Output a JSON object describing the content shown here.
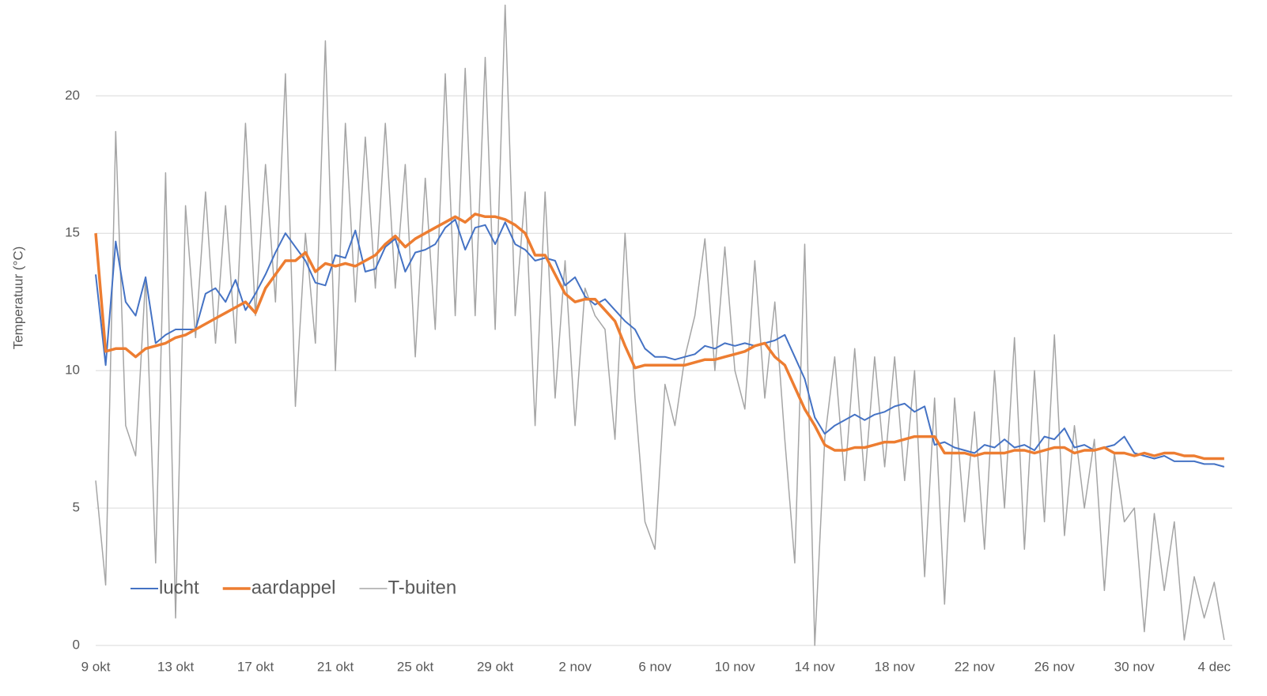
{
  "chart_data": {
    "type": "line",
    "y_label": "Temperatuur (°C)",
    "x": [
      0,
      0.5,
      1,
      1.5,
      2,
      2.5,
      3,
      3.5,
      4,
      4.5,
      5,
      5.5,
      6,
      6.5,
      7,
      7.5,
      8,
      8.5,
      9,
      9.5,
      10,
      10.5,
      11,
      11.5,
      12,
      12.5,
      13,
      13.5,
      14,
      14.5,
      15,
      15.5,
      16,
      16.5,
      17,
      17.5,
      18,
      18.5,
      19,
      19.5,
      20,
      20.5,
      21,
      21.5,
      22,
      22.5,
      23,
      23.5,
      24,
      24.5,
      25,
      25.5,
      26,
      26.5,
      27,
      27.5,
      28,
      28.5,
      29,
      29.5,
      30,
      30.5,
      31,
      31.5,
      32,
      32.5,
      33,
      33.5,
      34,
      34.5,
      35,
      35.5,
      36,
      36.5,
      37,
      37.5,
      38,
      38.5,
      39,
      39.5,
      40,
      40.5,
      41,
      41.5,
      42,
      42.5,
      43,
      43.5,
      44,
      44.5,
      45,
      45.5,
      46,
      46.5,
      47,
      47.5,
      48,
      48.5,
      49,
      49.5,
      50,
      50.5,
      51,
      51.5,
      52,
      52.5,
      53,
      53.5,
      54,
      54.5,
      55,
      55.5,
      56,
      56.5
    ],
    "xlim": [
      0,
      56.9
    ],
    "xticks": [
      {
        "value": 0,
        "label": "9 okt"
      },
      {
        "value": 4,
        "label": "13 okt"
      },
      {
        "value": 8,
        "label": "17 okt"
      },
      {
        "value": 12,
        "label": "21 okt"
      },
      {
        "value": 16,
        "label": "25 okt"
      },
      {
        "value": 20,
        "label": "29 okt"
      },
      {
        "value": 24,
        "label": "2 nov"
      },
      {
        "value": 28,
        "label": "6 nov"
      },
      {
        "value": 32,
        "label": "10 nov"
      },
      {
        "value": 36,
        "label": "14 nov"
      },
      {
        "value": 40,
        "label": "18 nov"
      },
      {
        "value": 44,
        "label": "22 nov"
      },
      {
        "value": 48,
        "label": "26 nov"
      },
      {
        "value": 52,
        "label": "30 nov"
      },
      {
        "value": 56,
        "label": "4 dec"
      }
    ],
    "ylim": [
      0,
      23.4
    ],
    "yticks": [
      0,
      5,
      10,
      15,
      20
    ],
    "grid": true,
    "legend": "lower left",
    "series": [
      {
        "name": "lucht",
        "color": "#4472c4",
        "values": [
          13.5,
          10.2,
          14.7,
          12.5,
          12.0,
          13.4,
          11.0,
          11.3,
          11.5,
          11.5,
          11.5,
          12.8,
          13.0,
          12.5,
          13.3,
          12.2,
          12.8,
          13.5,
          14.3,
          15.0,
          14.5,
          14.0,
          13.2,
          13.1,
          14.2,
          14.1,
          15.1,
          13.6,
          13.7,
          14.5,
          14.8,
          13.6,
          14.3,
          14.4,
          14.6,
          15.2,
          15.5,
          14.4,
          15.2,
          15.3,
          14.6,
          15.4,
          14.6,
          14.4,
          14.0,
          14.1,
          14.0,
          13.1,
          13.4,
          12.7,
          12.4,
          12.6,
          12.2,
          11.8,
          11.5,
          10.8,
          10.5,
          10.5,
          10.4,
          10.5,
          10.6,
          10.9,
          10.8,
          11.0,
          10.9,
          11.0,
          10.9,
          11.0,
          11.1,
          11.3,
          10.5,
          9.7,
          8.3,
          7.7,
          8.0,
          8.2,
          8.4,
          8.2,
          8.4,
          8.5,
          8.7,
          8.8,
          8.5,
          8.7,
          7.3,
          7.4,
          7.2,
          7.1,
          7.0,
          7.3,
          7.2,
          7.5,
          7.2,
          7.3,
          7.1,
          7.6,
          7.5,
          7.9,
          7.2,
          7.3,
          7.1,
          7.2,
          7.3,
          7.6,
          7.0,
          6.9,
          6.8,
          6.9,
          6.7,
          6.7,
          6.7,
          6.6,
          6.6,
          6.5
        ]
      },
      {
        "name": "aardappel",
        "color": "#ed7d31",
        "values": [
          15.0,
          10.7,
          10.8,
          10.8,
          10.5,
          10.8,
          10.9,
          11.0,
          11.2,
          11.3,
          11.5,
          11.7,
          11.9,
          12.1,
          12.3,
          12.5,
          12.1,
          13.0,
          13.5,
          14.0,
          14.0,
          14.3,
          13.6,
          13.9,
          13.8,
          13.9,
          13.8,
          14.0,
          14.2,
          14.6,
          14.9,
          14.5,
          14.8,
          15.0,
          15.2,
          15.4,
          15.6,
          15.4,
          15.7,
          15.6,
          15.6,
          15.5,
          15.3,
          15.0,
          14.2,
          14.2,
          13.5,
          12.8,
          12.5,
          12.6,
          12.6,
          12.2,
          11.8,
          10.9,
          10.1,
          10.2,
          10.2,
          10.2,
          10.2,
          10.2,
          10.3,
          10.4,
          10.4,
          10.5,
          10.6,
          10.7,
          10.9,
          11.0,
          10.5,
          10.2,
          9.4,
          8.6,
          8.0,
          7.3,
          7.1,
          7.1,
          7.2,
          7.2,
          7.3,
          7.4,
          7.4,
          7.5,
          7.6,
          7.6,
          7.6,
          7.0,
          7.0,
          7.0,
          6.9,
          7.0,
          7.0,
          7.0,
          7.1,
          7.1,
          7.0,
          7.1,
          7.2,
          7.2,
          7.0,
          7.1,
          7.1,
          7.2,
          7.0,
          7.0,
          6.9,
          7.0,
          6.9,
          7.0,
          7.0,
          6.9,
          6.9,
          6.8,
          6.8,
          6.8
        ]
      },
      {
        "name": "T-buiten",
        "color": "#a5a5a5",
        "values": [
          6.0,
          2.2,
          18.7,
          8.0,
          6.9,
          13.4,
          3.0,
          17.2,
          1.0,
          16.0,
          11.2,
          16.5,
          11.0,
          16.0,
          11.0,
          19.0,
          12.0,
          17.5,
          12.5,
          20.8,
          8.7,
          15.0,
          11.0,
          22.0,
          10.0,
          19.0,
          12.5,
          18.5,
          13.0,
          19.0,
          13.0,
          17.5,
          10.5,
          17.0,
          11.5,
          20.8,
          12.0,
          21.0,
          12.0,
          21.4,
          11.5,
          23.3,
          12.0,
          16.5,
          8.0,
          16.5,
          9.0,
          14.0,
          8.0,
          13.0,
          12.0,
          11.5,
          7.5,
          15.0,
          9.0,
          4.5,
          3.5,
          9.5,
          8.0,
          10.5,
          12.0,
          14.8,
          10.0,
          14.5,
          10.0,
          8.6,
          14.0,
          9.0,
          12.5,
          7.5,
          3.0,
          14.6,
          0.0,
          7.5,
          10.5,
          6.0,
          10.8,
          6.0,
          10.5,
          6.5,
          10.5,
          6.0,
          10.0,
          2.5,
          9.0,
          1.5,
          9.0,
          4.5,
          8.5,
          3.5,
          10.0,
          5.0,
          11.2,
          3.5,
          10.0,
          4.5,
          11.3,
          4.0,
          8.0,
          5.0,
          7.5,
          2.0,
          7.0,
          4.5,
          5.0,
          0.5,
          4.8,
          2.0,
          4.5,
          0.2,
          2.5,
          1.0,
          2.3,
          0.2
        ]
      }
    ]
  }
}
